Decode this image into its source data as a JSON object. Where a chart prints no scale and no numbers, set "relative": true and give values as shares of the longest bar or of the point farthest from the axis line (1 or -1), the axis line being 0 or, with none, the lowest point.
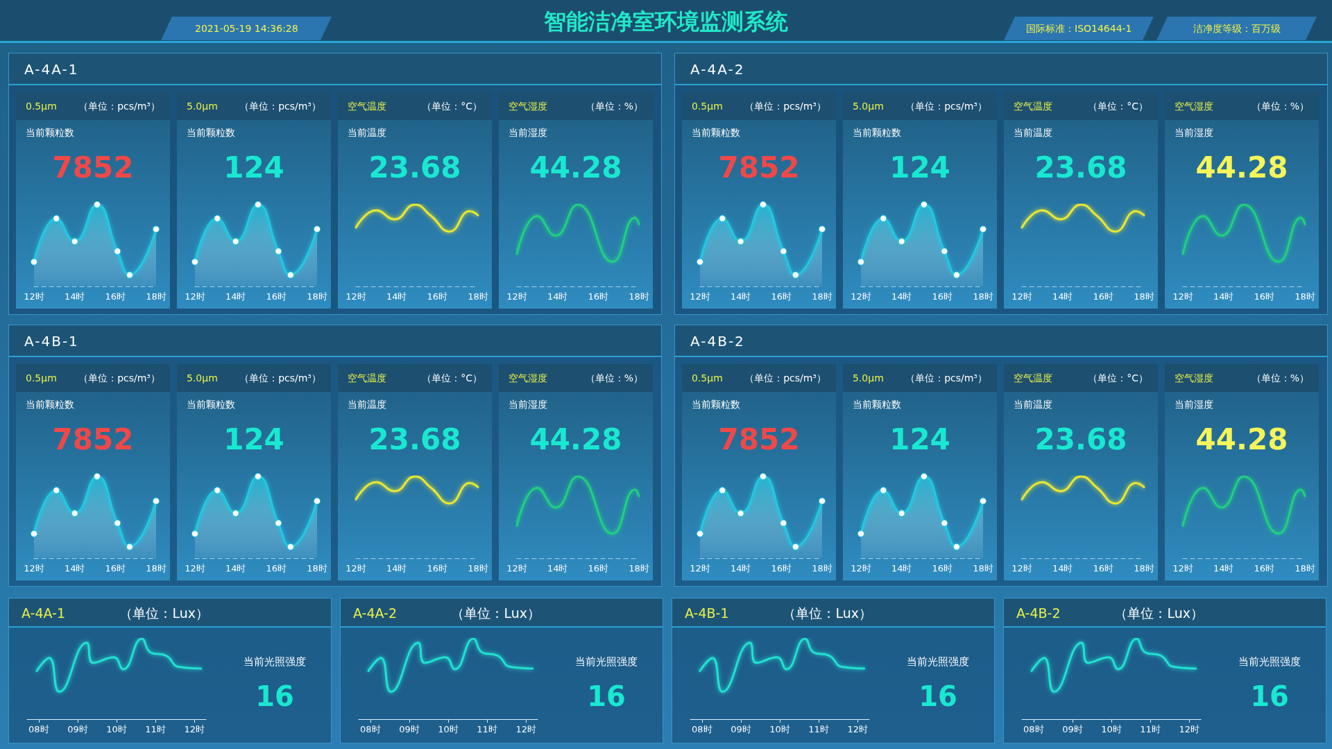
{
  "chart_data": [
    {
      "type": "other",
      "title": "智能洁净室环境监测系统",
      "annotations": [
        "2021-05-19 14:36:28",
        "国际标准：ISO14644-1",
        "洁净度等级：百万级"
      ]
    },
    {
      "type": "other",
      "title": "A-4A-1"
    },
    {
      "type": "area",
      "title": "0.5μm",
      "subtitle": "（单位：pcs/m³）",
      "annotations": [
        "当前颗粒数",
        "7852"
      ],
      "x": [
        12,
        13.1,
        14,
        15.1,
        16.1,
        16.7,
        18
      ],
      "series": [
        {
          "color": "#22c8e0",
          "values": [
            0.3,
            0.83,
            0.55,
            1,
            0.43,
            0.14,
            0.7
          ]
        }
      ],
      "relative": true,
      "xlim": [
        12,
        18
      ],
      "xticks": [
        {
          "value": 12,
          "label": "12时"
        },
        {
          "value": 14,
          "label": "14时"
        },
        {
          "value": 16,
          "label": "16时"
        },
        {
          "value": 18,
          "label": "18时"
        }
      ],
      "marker": "circle"
    },
    {
      "type": "area",
      "title": "5.0μm",
      "subtitle": "（单位：pcs/m³）",
      "annotations": [
        "当前颗粒数",
        "124"
      ],
      "x": [
        12,
        13.1,
        14,
        15.1,
        16.1,
        16.7,
        18
      ],
      "series": [
        {
          "color": "#22c8e0",
          "values": [
            0.3,
            0.83,
            0.55,
            1,
            0.43,
            0.14,
            0.7
          ]
        }
      ],
      "relative": true,
      "xlim": [
        12,
        18
      ],
      "xticks": [
        {
          "value": 12,
          "label": "12时"
        },
        {
          "value": 14,
          "label": "14时"
        },
        {
          "value": 16,
          "label": "16时"
        },
        {
          "value": 18,
          "label": "18时"
        }
      ],
      "marker": "circle"
    },
    {
      "type": "line",
      "title": "空气温度",
      "subtitle": "（单位：°C）",
      "annotations": [
        "当前温度",
        "23.68"
      ],
      "x": [
        12,
        13,
        13.9,
        14.9,
        15.7,
        16.6,
        17.6,
        18
      ],
      "series": [
        {
          "color": "#e8e830",
          "values": [
            0.72,
            0.93,
            0.82,
            1,
            0.86,
            0.67,
            0.92,
            0.87
          ]
        }
      ],
      "relative": true,
      "xlim": [
        12,
        18
      ],
      "xticks": [
        {
          "value": 12,
          "label": "12时"
        },
        {
          "value": 14,
          "label": "14时"
        },
        {
          "value": 16,
          "label": "16时"
        },
        {
          "value": 18,
          "label": "18时"
        }
      ]
    },
    {
      "type": "line",
      "title": "空气湿度",
      "subtitle": "（单位：%）",
      "annotations": [
        "当前湿度",
        "44.28"
      ],
      "x": [
        12,
        13,
        13.9,
        15,
        16.7,
        17.8,
        18
      ],
      "series": [
        {
          "color": "#20d080",
          "values": [
            0.4,
            0.86,
            0.62,
            1,
            0.3,
            0.84,
            0.76
          ]
        }
      ],
      "relative": true,
      "xlim": [
        12,
        18
      ],
      "xticks": [
        {
          "value": 12,
          "label": "12时"
        },
        {
          "value": 14,
          "label": "14时"
        },
        {
          "value": 16,
          "label": "16时"
        },
        {
          "value": 18,
          "label": "18时"
        }
      ]
    },
    {
      "type": "other",
      "title": "A-4A-2"
    },
    {
      "type": "area",
      "title": "0.5μm",
      "subtitle": "（单位：pcs/m³）",
      "annotations": [
        "当前颗粒数",
        "7852"
      ],
      "x": [
        12,
        13.1,
        14,
        15.1,
        16.1,
        16.7,
        18
      ],
      "series": [
        {
          "color": "#22c8e0",
          "values": [
            0.3,
            0.83,
            0.55,
            1,
            0.43,
            0.14,
            0.7
          ]
        }
      ],
      "relative": true,
      "xlim": [
        12,
        18
      ],
      "xticks": [
        {
          "value": 12,
          "label": "12时"
        },
        {
          "value": 14,
          "label": "14时"
        },
        {
          "value": 16,
          "label": "16时"
        },
        {
          "value": 18,
          "label": "18时"
        }
      ],
      "marker": "circle"
    },
    {
      "type": "area",
      "title": "5.0μm",
      "subtitle": "（单位：pcs/m³）",
      "annotations": [
        "当前颗粒数",
        "124"
      ],
      "x": [
        12,
        13.1,
        14,
        15.1,
        16.1,
        16.7,
        18
      ],
      "series": [
        {
          "color": "#22c8e0",
          "values": [
            0.3,
            0.83,
            0.55,
            1,
            0.43,
            0.14,
            0.7
          ]
        }
      ],
      "relative": true,
      "xlim": [
        12,
        18
      ],
      "xticks": [
        {
          "value": 12,
          "label": "12时"
        },
        {
          "value": 14,
          "label": "14时"
        },
        {
          "value": 16,
          "label": "16时"
        },
        {
          "value": 18,
          "label": "18时"
        }
      ],
      "marker": "circle"
    },
    {
      "type": "line",
      "title": "空气温度",
      "subtitle": "（单位：°C）",
      "annotations": [
        "当前温度",
        "23.68"
      ],
      "x": [
        12,
        13,
        13.9,
        14.9,
        15.7,
        16.6,
        17.6,
        18
      ],
      "series": [
        {
          "color": "#e8e830",
          "values": [
            0.72,
            0.93,
            0.82,
            1,
            0.86,
            0.67,
            0.92,
            0.87
          ]
        }
      ],
      "relative": true,
      "xlim": [
        12,
        18
      ],
      "xticks": [
        {
          "value": 12,
          "label": "12时"
        },
        {
          "value": 14,
          "label": "14时"
        },
        {
          "value": 16,
          "label": "16时"
        },
        {
          "value": 18,
          "label": "18时"
        }
      ]
    },
    {
      "type": "line",
      "title": "空气湿度",
      "subtitle": "（单位：%）",
      "annotations": [
        "当前湿度",
        "44.28"
      ],
      "x": [
        12,
        13,
        13.9,
        15,
        16.7,
        17.8,
        18
      ],
      "series": [
        {
          "color": "#20d080",
          "values": [
            0.4,
            0.86,
            0.62,
            1,
            0.3,
            0.84,
            0.76
          ]
        }
      ],
      "relative": true,
      "xlim": [
        12,
        18
      ],
      "xticks": [
        {
          "value": 12,
          "label": "12时"
        },
        {
          "value": 14,
          "label": "14时"
        },
        {
          "value": 16,
          "label": "16时"
        },
        {
          "value": 18,
          "label": "18时"
        }
      ]
    },
    {
      "type": "other",
      "title": "A-4B-1"
    },
    {
      "type": "area",
      "title": "0.5μm",
      "subtitle": "（单位：pcs/m³）",
      "annotations": [
        "当前颗粒数",
        "7852"
      ],
      "x": [
        12,
        13.1,
        14,
        15.1,
        16.1,
        16.7,
        18
      ],
      "series": [
        {
          "color": "#22c8e0",
          "values": [
            0.3,
            0.83,
            0.55,
            1,
            0.43,
            0.14,
            0.7
          ]
        }
      ],
      "relative": true,
      "xlim": [
        12,
        18
      ],
      "xticks": [
        {
          "value": 12,
          "label": "12时"
        },
        {
          "value": 14,
          "label": "14时"
        },
        {
          "value": 16,
          "label": "16时"
        },
        {
          "value": 18,
          "label": "18时"
        }
      ],
      "marker": "circle"
    },
    {
      "type": "area",
      "title": "5.0μm",
      "subtitle": "（单位：pcs/m³）",
      "annotations": [
        "当前颗粒数",
        "124"
      ],
      "x": [
        12,
        13.1,
        14,
        15.1,
        16.1,
        16.7,
        18
      ],
      "series": [
        {
          "color": "#22c8e0",
          "values": [
            0.3,
            0.83,
            0.55,
            1,
            0.43,
            0.14,
            0.7
          ]
        }
      ],
      "relative": true,
      "xlim": [
        12,
        18
      ],
      "xticks": [
        {
          "value": 12,
          "label": "12时"
        },
        {
          "value": 14,
          "label": "14时"
        },
        {
          "value": 16,
          "label": "16时"
        },
        {
          "value": 18,
          "label": "18时"
        }
      ],
      "marker": "circle"
    },
    {
      "type": "line",
      "title": "空气温度",
      "subtitle": "（单位：°C）",
      "annotations": [
        "当前温度",
        "23.68"
      ],
      "x": [
        12,
        13,
        13.9,
        14.9,
        15.7,
        16.6,
        17.6,
        18
      ],
      "series": [
        {
          "color": "#e8e830",
          "values": [
            0.72,
            0.93,
            0.82,
            1,
            0.86,
            0.67,
            0.92,
            0.87
          ]
        }
      ],
      "relative": true,
      "xlim": [
        12,
        18
      ],
      "xticks": [
        {
          "value": 12,
          "label": "12时"
        },
        {
          "value": 14,
          "label": "14时"
        },
        {
          "value": 16,
          "label": "16时"
        },
        {
          "value": 18,
          "label": "18时"
        }
      ]
    },
    {
      "type": "line",
      "title": "空气湿度",
      "subtitle": "（单位：%）",
      "annotations": [
        "当前湿度",
        "44.28"
      ],
      "x": [
        12,
        13,
        13.9,
        15,
        16.7,
        17.8,
        18
      ],
      "series": [
        {
          "color": "#20d080",
          "values": [
            0.4,
            0.86,
            0.62,
            1,
            0.3,
            0.84,
            0.76
          ]
        }
      ],
      "relative": true,
      "xlim": [
        12,
        18
      ],
      "xticks": [
        {
          "value": 12,
          "label": "12时"
        },
        {
          "value": 14,
          "label": "14时"
        },
        {
          "value": 16,
          "label": "16时"
        },
        {
          "value": 18,
          "label": "18时"
        }
      ]
    },
    {
      "type": "other",
      "title": "A-4B-2"
    },
    {
      "type": "area",
      "title": "0.5μm",
      "subtitle": "（单位：pcs/m³）",
      "annotations": [
        "当前颗粒数",
        "7852"
      ],
      "x": [
        12,
        13.1,
        14,
        15.1,
        16.1,
        16.7,
        18
      ],
      "series": [
        {
          "color": "#22c8e0",
          "values": [
            0.3,
            0.83,
            0.55,
            1,
            0.43,
            0.14,
            0.7
          ]
        }
      ],
      "relative": true,
      "xlim": [
        12,
        18
      ],
      "xticks": [
        {
          "value": 12,
          "label": "12时"
        },
        {
          "value": 14,
          "label": "14时"
        },
        {
          "value": 16,
          "label": "16时"
        },
        {
          "value": 18,
          "label": "18时"
        }
      ],
      "marker": "circle"
    },
    {
      "type": "area",
      "title": "5.0μm",
      "subtitle": "（单位：pcs/m³）",
      "annotations": [
        "当前颗粒数",
        "124"
      ],
      "x": [
        12,
        13.1,
        14,
        15.1,
        16.1,
        16.7,
        18
      ],
      "series": [
        {
          "color": "#22c8e0",
          "values": [
            0.3,
            0.83,
            0.55,
            1,
            0.43,
            0.14,
            0.7
          ]
        }
      ],
      "relative": true,
      "xlim": [
        12,
        18
      ],
      "xticks": [
        {
          "value": 12,
          "label": "12时"
        },
        {
          "value": 14,
          "label": "14时"
        },
        {
          "value": 16,
          "label": "16时"
        },
        {
          "value": 18,
          "label": "18时"
        }
      ],
      "marker": "circle"
    },
    {
      "type": "line",
      "title": "空气温度",
      "subtitle": "（单位：°C）",
      "annotations": [
        "当前温度",
        "23.68"
      ],
      "x": [
        12,
        13,
        13.9,
        14.9,
        15.7,
        16.6,
        17.6,
        18
      ],
      "series": [
        {
          "color": "#e8e830",
          "values": [
            0.72,
            0.93,
            0.82,
            1,
            0.86,
            0.67,
            0.92,
            0.87
          ]
        }
      ],
      "relative": true,
      "xlim": [
        12,
        18
      ],
      "xticks": [
        {
          "value": 12,
          "label": "12时"
        },
        {
          "value": 14,
          "label": "14时"
        },
        {
          "value": 16,
          "label": "16时"
        },
        {
          "value": 18,
          "label": "18时"
        }
      ]
    },
    {
      "type": "line",
      "title": "空气湿度",
      "subtitle": "（单位：%）",
      "annotations": [
        "当前湿度",
        "44.28"
      ],
      "x": [
        12,
        13,
        13.9,
        15,
        16.7,
        17.8,
        18
      ],
      "series": [
        {
          "color": "#20d080",
          "values": [
            0.4,
            0.86,
            0.62,
            1,
            0.3,
            0.84,
            0.76
          ]
        }
      ],
      "relative": true,
      "xlim": [
        12,
        18
      ],
      "xticks": [
        {
          "value": 12,
          "label": "12时"
        },
        {
          "value": 14,
          "label": "14时"
        },
        {
          "value": 16,
          "label": "16时"
        },
        {
          "value": 18,
          "label": "18时"
        }
      ]
    },
    {
      "type": "line",
      "title": "A-4A-1",
      "subtitle": "（单位：Lux）",
      "annotations": [
        "当前光照强度",
        "16"
      ],
      "x": [
        7.95,
        8.27,
        8.53,
        9.23,
        9.4,
        9.93,
        10.17,
        10.65,
        10.87,
        11.27,
        11.6,
        12.17
      ],
      "series": [
        {
          "color": "#20e0d0",
          "values": [
            0.6,
            0.76,
            0.34,
            0.95,
            0.7,
            0.77,
            0.62,
            1,
            0.83,
            0.79,
            0.65,
            0.63
          ]
        }
      ],
      "relative": true,
      "xlim": [
        7.7,
        12.3
      ],
      "xticks": [
        {
          "value": 8,
          "label": "08时"
        },
        {
          "value": 9,
          "label": "09时"
        },
        {
          "value": 10,
          "label": "10时"
        },
        {
          "value": 11,
          "label": "11时"
        },
        {
          "value": 12,
          "label": "12时"
        }
      ]
    },
    {
      "type": "line",
      "title": "A-4A-2",
      "subtitle": "（单位：Lux）",
      "annotations": [
        "当前光照强度",
        "16"
      ],
      "x": [
        7.95,
        8.27,
        8.53,
        9.23,
        9.4,
        9.93,
        10.17,
        10.65,
        10.87,
        11.27,
        11.6,
        12.17
      ],
      "series": [
        {
          "color": "#20e0d0",
          "values": [
            0.6,
            0.76,
            0.34,
            0.95,
            0.7,
            0.77,
            0.62,
            1,
            0.83,
            0.79,
            0.65,
            0.63
          ]
        }
      ],
      "relative": true,
      "xlim": [
        7.7,
        12.3
      ],
      "xticks": [
        {
          "value": 8,
          "label": "08时"
        },
        {
          "value": 9,
          "label": "09时"
        },
        {
          "value": 10,
          "label": "10时"
        },
        {
          "value": 11,
          "label": "11时"
        },
        {
          "value": 12,
          "label": "12时"
        }
      ]
    },
    {
      "type": "line",
      "title": "A-4B-1",
      "subtitle": "（单位：Lux）",
      "annotations": [
        "当前光照强度",
        "16"
      ],
      "x": [
        7.95,
        8.27,
        8.53,
        9.23,
        9.4,
        9.93,
        10.17,
        10.65,
        10.87,
        11.27,
        11.6,
        12.17
      ],
      "series": [
        {
          "color": "#20e0d0",
          "values": [
            0.6,
            0.76,
            0.34,
            0.95,
            0.7,
            0.77,
            0.62,
            1,
            0.83,
            0.79,
            0.65,
            0.63
          ]
        }
      ],
      "relative": true,
      "xlim": [
        7.7,
        12.3
      ],
      "xticks": [
        {
          "value": 8,
          "label": "08时"
        },
        {
          "value": 9,
          "label": "09时"
        },
        {
          "value": 10,
          "label": "10时"
        },
        {
          "value": 11,
          "label": "11时"
        },
        {
          "value": 12,
          "label": "12时"
        }
      ]
    },
    {
      "type": "line",
      "title": "A-4B-2",
      "subtitle": "（单位：Lux）",
      "annotations": [
        "当前光照强度",
        "16"
      ],
      "x": [
        7.95,
        8.27,
        8.53,
        9.23,
        9.4,
        9.93,
        10.17,
        10.65,
        10.87,
        11.27,
        11.6,
        12.17
      ],
      "series": [
        {
          "color": "#20e0d0",
          "values": [
            0.6,
            0.76,
            0.34,
            0.95,
            0.7,
            0.77,
            0.62,
            1,
            0.83,
            0.79,
            0.65,
            0.63
          ]
        }
      ],
      "relative": true,
      "xlim": [
        7.7,
        12.3
      ],
      "xticks": [
        {
          "value": 8,
          "label": "08时"
        },
        {
          "value": 9,
          "label": "09时"
        },
        {
          "value": 10,
          "label": "10时"
        },
        {
          "value": 11,
          "label": "11时"
        },
        {
          "value": 12,
          "label": "12时"
        }
      ]
    }
  ]
}
